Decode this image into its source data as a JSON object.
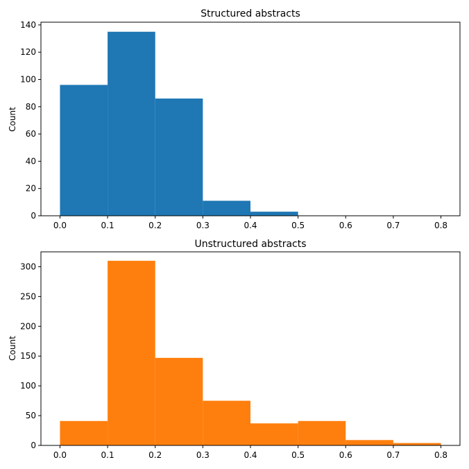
{
  "chart_data": [
    {
      "type": "bar",
      "title": "Structured abstracts",
      "xlabel": "",
      "ylabel": "Count",
      "bin_edges": [
        0.0,
        0.1,
        0.2,
        0.3,
        0.4,
        0.5
      ],
      "values": [
        96,
        135,
        86,
        11,
        3
      ],
      "color": "#1f77b4",
      "xlim": [
        -0.04,
        0.84
      ],
      "ylim": [
        0,
        142
      ],
      "xticks": [
        "0.0",
        "0.1",
        "0.2",
        "0.3",
        "0.4",
        "0.5",
        "0.6",
        "0.7",
        "0.8"
      ],
      "yticks": [
        "0",
        "20",
        "40",
        "60",
        "80",
        "100",
        "120",
        "140"
      ],
      "grid": false
    },
    {
      "type": "bar",
      "title": "Unstructured abstracts",
      "xlabel": "",
      "ylabel": "Count",
      "bin_edges": [
        0.0,
        0.1,
        0.2,
        0.3,
        0.4,
        0.5,
        0.6,
        0.7,
        0.8
      ],
      "values": [
        41,
        310,
        147,
        75,
        37,
        41,
        9,
        4
      ],
      "color": "#ff7f0e",
      "xlim": [
        -0.04,
        0.84
      ],
      "ylim": [
        0,
        325
      ],
      "xticks": [
        "0.0",
        "0.1",
        "0.2",
        "0.3",
        "0.4",
        "0.5",
        "0.6",
        "0.7",
        "0.8"
      ],
      "yticks": [
        "0",
        "50",
        "100",
        "150",
        "200",
        "250",
        "300"
      ],
      "grid": false
    }
  ]
}
